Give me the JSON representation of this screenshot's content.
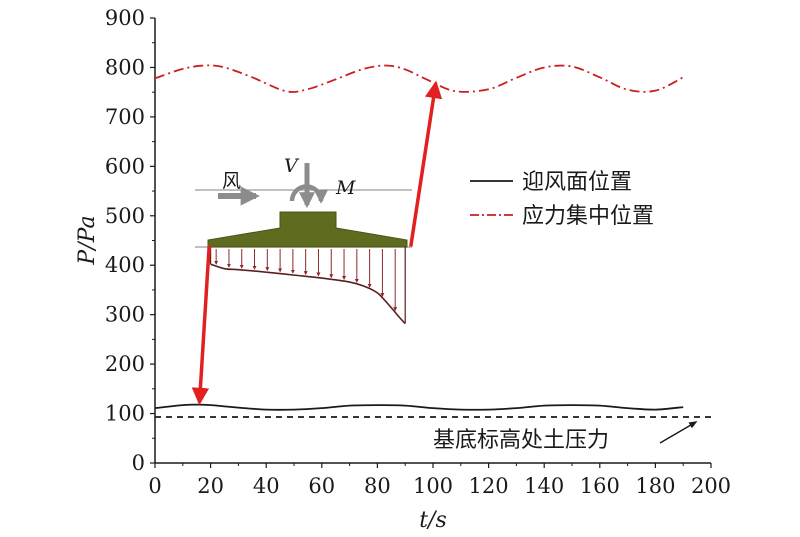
{
  "chart_data": {
    "type": "line",
    "xlabel": "t/s",
    "ylabel": "P/Pa",
    "xlim": [
      0,
      200
    ],
    "ylim": [
      0,
      900
    ],
    "x_ticks": [
      "0",
      "20",
      "40",
      "60",
      "80",
      "100",
      "120",
      "140",
      "160",
      "180",
      "200"
    ],
    "y_ticks": [
      "0",
      "100",
      "200",
      "300",
      "400",
      "500",
      "600",
      "700",
      "800",
      "900"
    ],
    "grid": false,
    "legend_position": "right",
    "series": [
      {
        "name": "迎风面位置",
        "style": "solid",
        "color": "#1a1a1a",
        "x": [
          0,
          10,
          15,
          20,
          30,
          40,
          50,
          60,
          70,
          80,
          90,
          100,
          110,
          120,
          130,
          140,
          150,
          160,
          170,
          180,
          190
        ],
        "y": [
          111,
          117,
          118,
          117,
          112,
          108,
          108,
          111,
          116,
          117,
          116,
          111,
          108,
          108,
          111,
          116,
          117,
          116,
          111,
          108,
          113
        ]
      },
      {
        "name": "应力集中位置",
        "style": "dash-dot",
        "color": "#cc1f1f",
        "x": [
          0,
          10,
          18,
          25,
          35,
          47,
          55,
          65,
          75,
          83,
          90,
          98,
          108,
          120,
          130,
          140,
          150,
          160,
          170,
          180,
          190
        ],
        "y": [
          778,
          797,
          804,
          800,
          780,
          752,
          756,
          776,
          797,
          804,
          796,
          775,
          752,
          756,
          779,
          800,
          802,
          780,
          755,
          753,
          780
        ]
      },
      {
        "name": "",
        "style": "dashed",
        "color": "#1a1a1a",
        "x": [
          0,
          200
        ],
        "y": [
          93,
          93
        ]
      }
    ],
    "annotations": [
      {
        "text": "基底标高处土压力",
        "target": {
          "x": 195,
          "y": 93
        }
      }
    ],
    "arrows": [
      {
        "color": "#e32020",
        "from": {
          "x": 19.5,
          "y": 440
        },
        "to": {
          "x": 16,
          "y": 122
        }
      },
      {
        "color": "#e32020",
        "from": {
          "x": 92,
          "y": 438
        },
        "to": {
          "x": 101,
          "y": 768
        }
      }
    ]
  },
  "inset_diagram": {
    "labels": {
      "wind": "风",
      "vertical_force": "V",
      "moment": "M"
    },
    "colors": {
      "foundation": "#5f6b1e",
      "pressure_arrows": "#8a2a2a",
      "wind_arrow": "#8c8c8c",
      "main_arrows": "#e32020"
    },
    "pressure_curve_x": [
      20,
      25,
      30,
      40,
      50,
      60,
      70,
      75,
      80,
      85,
      88,
      90
    ],
    "pressure_curve_y": [
      402,
      393,
      391,
      386,
      380,
      374,
      366,
      358,
      344,
      314,
      294,
      282
    ]
  }
}
